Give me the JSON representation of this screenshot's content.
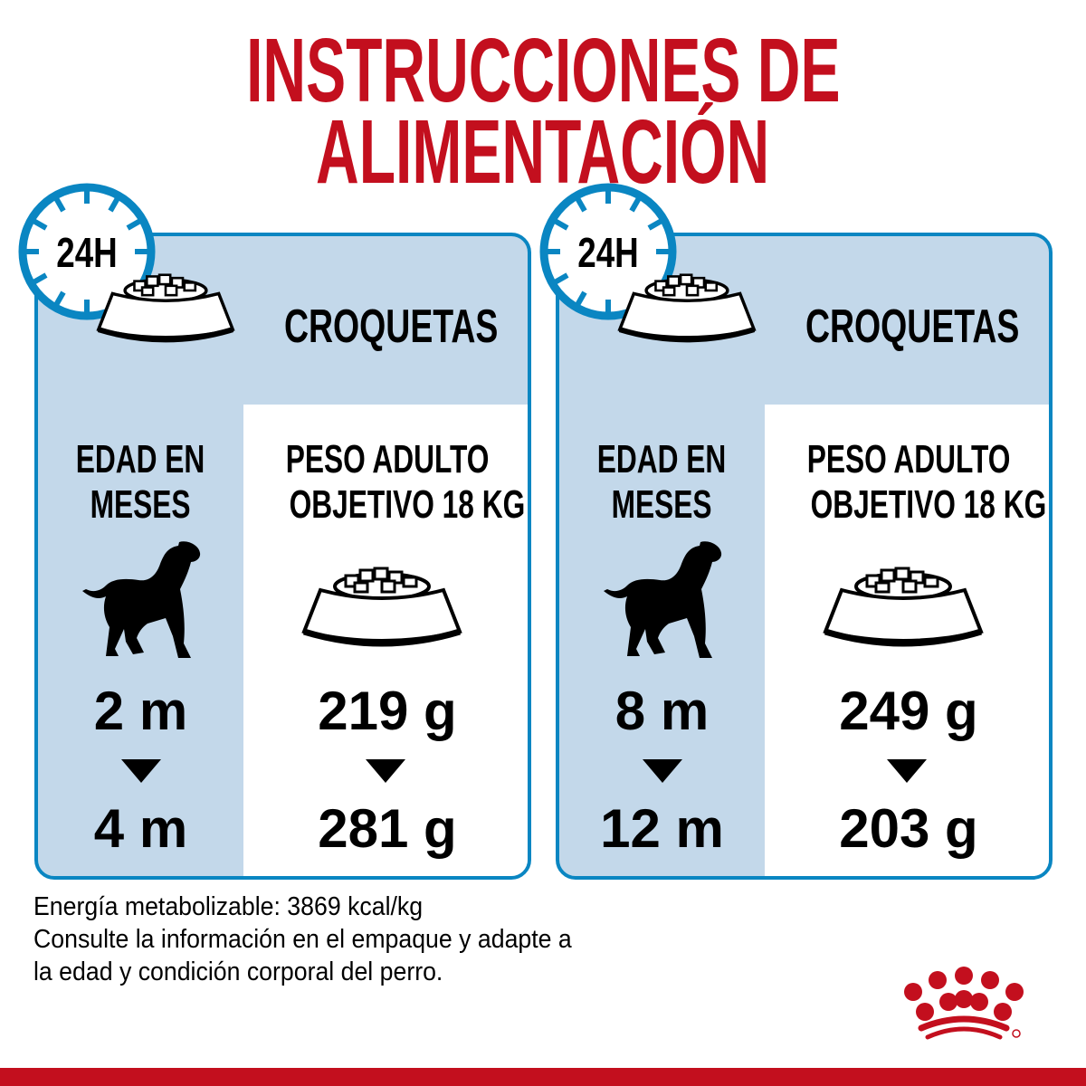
{
  "title": {
    "line1": "INSTRUCCIONES DE",
    "line2": "ALIMENTACIÓN"
  },
  "colors": {
    "brand_red": "#c30f1e",
    "accent_blue": "#0a86c2",
    "panel_blue": "#c3d8ea"
  },
  "panels": [
    {
      "clock": "24H",
      "header": "CROQUETAS",
      "age_label_1": "EDAD EN",
      "age_label_2": "MESES",
      "weight_label_1": "PESO ADULTO",
      "weight_label_2": "OBJETIVO 18 KG",
      "age_from": "2 m",
      "age_to": "4 m",
      "amount_from": "219 g",
      "amount_to": "281 g"
    },
    {
      "clock": "24H",
      "header": "CROQUETAS",
      "age_label_1": "EDAD EN",
      "age_label_2": "MESES",
      "weight_label_1": "PESO ADULTO",
      "weight_label_2": "OBJETIVO 18 KG",
      "age_from": "8 m",
      "age_to": "12 m",
      "amount_from": "249 g",
      "amount_to": "203 g"
    }
  ],
  "notes": [
    "Energía metabolizable: 3869 kcal/kg",
    "Consulte la información en el empaque y adapte a",
    "la edad y condición corporal del perro."
  ],
  "logo": {
    "icon": "royal-canin-crown-logo"
  }
}
